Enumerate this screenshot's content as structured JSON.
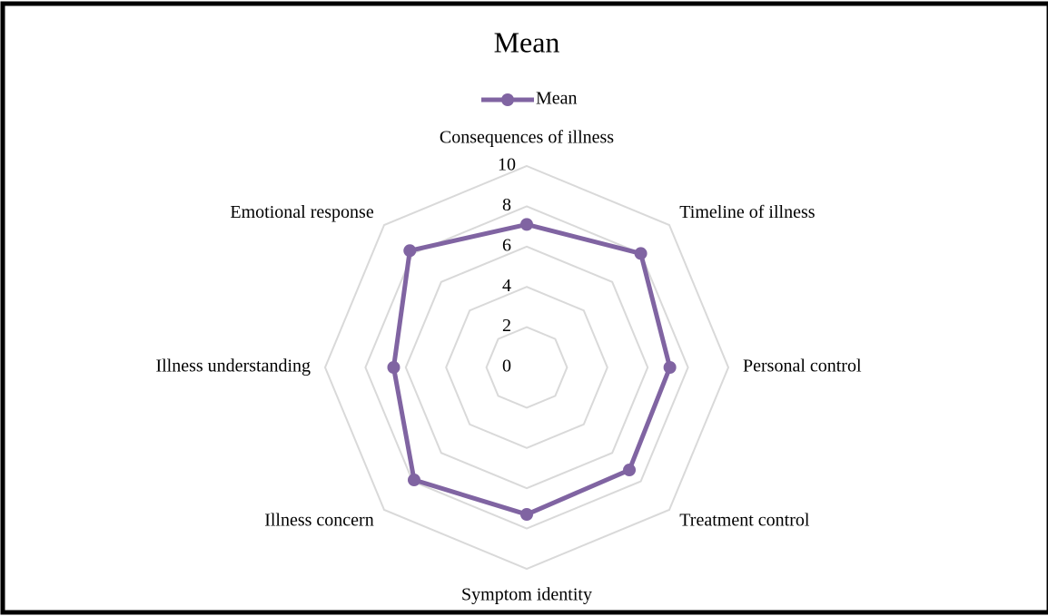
{
  "chart_data": {
    "type": "radar",
    "title": "Mean",
    "categories": [
      "Consequences of illness",
      "Timeline of illness",
      "Personal control",
      "Treatment control",
      "Symptom identity",
      "Illness concern",
      "Illness understanding",
      "Emotional response"
    ],
    "series": [
      {
        "name": "Mean",
        "color": "#8064a2",
        "values": [
          7.1,
          8.0,
          7.1,
          7.2,
          7.3,
          7.9,
          6.6,
          8.2
        ]
      }
    ],
    "ylim": [
      0,
      10
    ],
    "yticks": [
      0,
      2,
      4,
      6,
      8,
      10
    ],
    "grid": true,
    "legend": "top"
  }
}
